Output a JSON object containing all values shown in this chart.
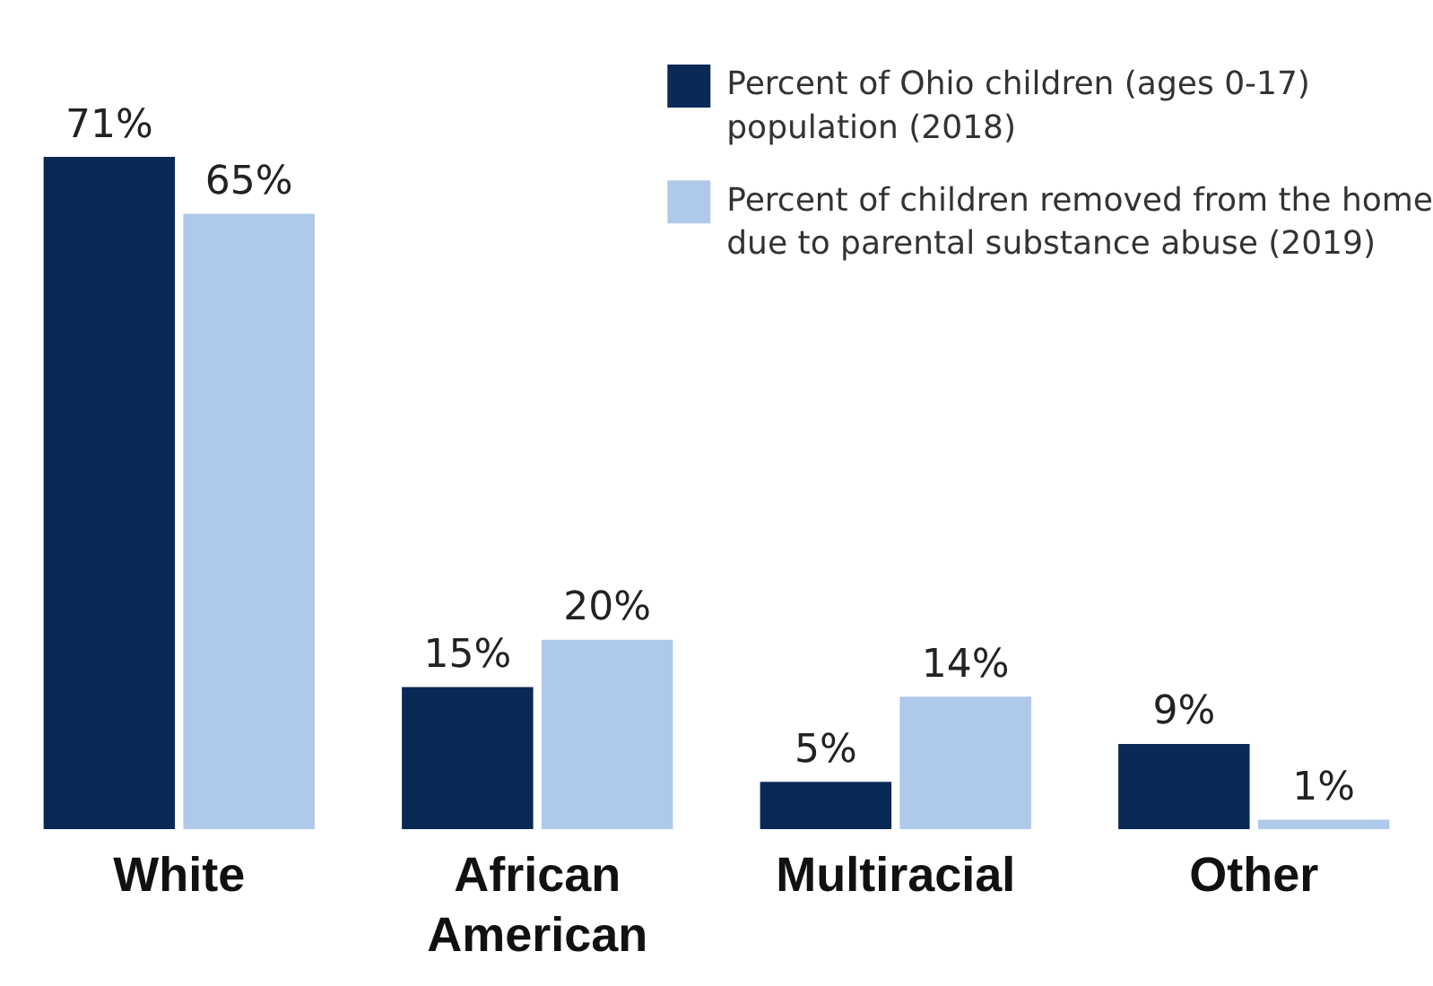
{
  "chart_data": {
    "type": "bar",
    "categories": [
      "White",
      "African American",
      "Multiracial",
      "Other"
    ],
    "series": [
      {
        "name": "Percent of Ohio children (ages 0-17) population (2018)",
        "color": "#0b2956",
        "values": [
          71,
          15,
          5,
          9
        ],
        "value_labels": [
          "71%",
          "15%",
          "5%",
          "9%"
        ]
      },
      {
        "name": "Percent of children removed from the home due to parental substance abuse (2019)",
        "color": "#aec9ea",
        "values": [
          65,
          20,
          14,
          1
        ],
        "value_labels": [
          "65%",
          "20%",
          "14%",
          "1%"
        ]
      }
    ],
    "legend": "top right",
    "grid": false
  }
}
